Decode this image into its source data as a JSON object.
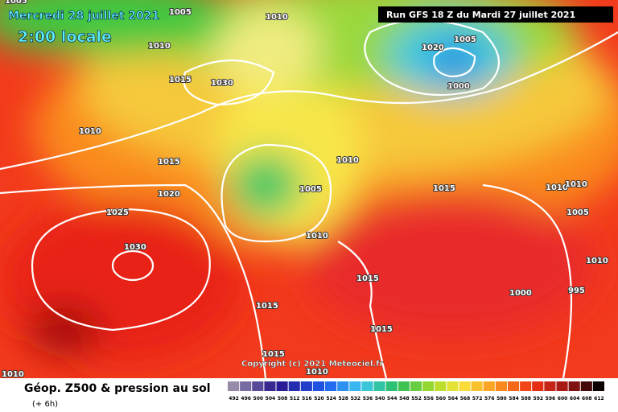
{
  "header": {
    "date": "Mercredi 28 juillet 2021",
    "time": "2:00 locale",
    "run": "Run GFS 18 Z du Mardi 27 juillet 2021"
  },
  "copyright": "Copyright (c) 2021 Meteociel.fr",
  "legend": {
    "title": "Géop. Z500 & pression au sol",
    "step": "(+ 6h)",
    "scale": [
      "492",
      "496",
      "500",
      "504",
      "508",
      "512",
      "516",
      "520",
      "524",
      "528",
      "532",
      "536",
      "540",
      "544",
      "548",
      "552",
      "556",
      "560",
      "564",
      "568",
      "572",
      "576",
      "580",
      "584",
      "588",
      "592",
      "596",
      "600",
      "604",
      "608",
      "612"
    ]
  },
  "isobars": [
    "1005",
    "1010",
    "1010",
    "1015",
    "1010",
    "1030",
    "1015",
    "1020",
    "1025",
    "1030",
    "1010",
    "1005",
    "1010",
    "1015",
    "1015",
    "1015",
    "1015",
    "1015",
    "1010",
    "1010",
    "1020",
    "1005",
    "1000",
    "1010",
    "1010",
    "1005",
    "1010",
    "995",
    "1000",
    "1005"
  ]
}
